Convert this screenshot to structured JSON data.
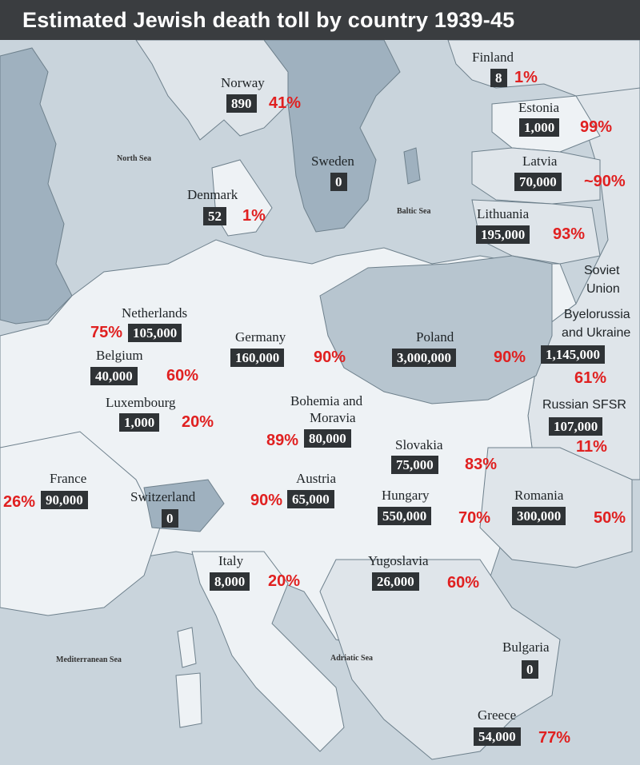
{
  "title": "Estimated Jewish death toll by country 1939-45",
  "colors": {
    "sea": "#c9d4dc",
    "land_light": "#eef2f5",
    "land_mid": "#dfe5ea",
    "land_dark": "#9fb1bf",
    "label_box": "#2f3336",
    "percent": "#e02020",
    "title_bar": "#3a3d40"
  },
  "seas": {
    "north_sea": "North Sea",
    "baltic_sea": "Baltic Sea",
    "mediterranean_sea": "Mediterranean Sea",
    "adriatic_sea": "Adriatic Sea"
  },
  "countries": {
    "finland": {
      "name": "Finland",
      "deaths": "8",
      "percent": "1%"
    },
    "norway": {
      "name": "Norway",
      "deaths": "890",
      "percent": "41%"
    },
    "estonia": {
      "name": "Estonia",
      "deaths": "1,000",
      "percent": "99%"
    },
    "sweden": {
      "name": "Sweden",
      "deaths": "0"
    },
    "latvia": {
      "name": "Latvia",
      "deaths": "70,000",
      "percent": "~90%"
    },
    "denmark": {
      "name": "Denmark",
      "deaths": "52",
      "percent": "1%"
    },
    "lithuania": {
      "name": "Lithuania",
      "deaths": "195,000",
      "percent": "93%"
    },
    "soviet_union": {
      "name_line1": "Soviet",
      "name_line2": "Union"
    },
    "byelorussia_ukraine": {
      "name_line1": "Byelorussia",
      "name_line2": "and Ukraine",
      "deaths": "1,145,000",
      "percent": "61%"
    },
    "netherlands": {
      "name": "Netherlands",
      "deaths": "105,000",
      "percent": "75%"
    },
    "germany": {
      "name": "Germany",
      "deaths": "160,000",
      "percent": "90%"
    },
    "poland": {
      "name": "Poland",
      "deaths": "3,000,000",
      "percent": "90%"
    },
    "belgium": {
      "name": "Belgium",
      "deaths": "40,000",
      "percent": "60%"
    },
    "luxembourg": {
      "name": "Luxembourg",
      "deaths": "1,000",
      "percent": "20%"
    },
    "bohemia_moravia": {
      "name_line1": "Bohemia and",
      "name_line2": "Moravia",
      "deaths": "80,000",
      "percent": "89%"
    },
    "russian_sfsr": {
      "name": "Russian SFSR",
      "deaths": "107,000",
      "percent": "11%"
    },
    "slovakia": {
      "name": "Slovakia",
      "deaths": "75,000",
      "percent": "83%"
    },
    "france": {
      "name": "France",
      "deaths": "90,000",
      "percent": "26%"
    },
    "switzerland": {
      "name": "Switzerland",
      "deaths": "0"
    },
    "austria": {
      "name": "Austria",
      "deaths": "65,000",
      "percent": "90%"
    },
    "hungary": {
      "name": "Hungary",
      "deaths": "550,000",
      "percent": "70%"
    },
    "romania": {
      "name": "Romania",
      "deaths": "300,000",
      "percent": "50%"
    },
    "italy": {
      "name": "Italy",
      "deaths": "8,000",
      "percent": "20%"
    },
    "yugoslavia": {
      "name": "Yugoslavia",
      "deaths": "26,000",
      "percent": "60%"
    },
    "bulgaria": {
      "name": "Bulgaria",
      "deaths": "0"
    },
    "greece": {
      "name": "Greece",
      "deaths": "54,000",
      "percent": "77%"
    }
  }
}
